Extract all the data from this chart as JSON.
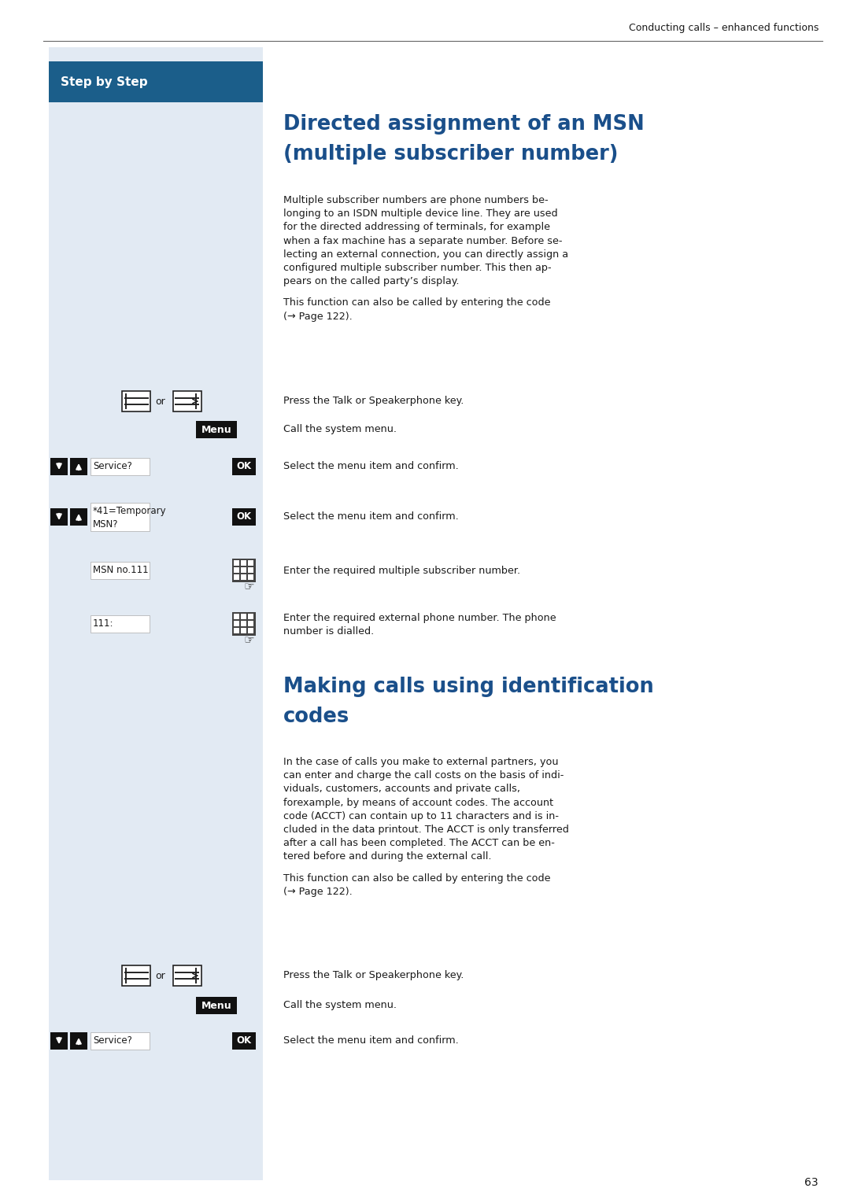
{
  "header_text": "Conducting calls – enhanced functions",
  "page_number": "63",
  "step_by_step_label": "Step by Step",
  "step_by_step_bg": "#1b5e8a",
  "left_panel_bg": "#e2eaf3",
  "title1_line1": "Directed assignment of an MSN",
  "title1_line2": "(multiple subscriber number)",
  "title_color": "#1a4f8a",
  "body1_lines": [
    "Multiple subscriber numbers are phone numbers be-",
    "longing to an ISDN multiple device line. They are used",
    "for the directed addressing of terminals, for example",
    "when a fax machine has a separate number. Before se-",
    "lecting an external connection, you can directly assign a",
    "configured multiple subscriber number. This then ap-",
    "pears on the called party’s display."
  ],
  "note1_lines": [
    "This function can also be called by entering the code",
    "(→ Page 122)."
  ],
  "title2_line1": "Making calls using identification",
  "title2_line2": "codes",
  "body2_lines": [
    "In the case of calls you make to external partners, you",
    "can enter and charge the call costs on the basis of indi-",
    "viduals, customers, accounts and private calls,",
    "forexample, by means of account codes. The account",
    "code (ACCT) can contain up to 11 characters and is in-",
    "cluded in the data printout. The ACCT is only transferred",
    "after a call has been completed. The ACCT can be en-",
    "tered before and during the external call."
  ],
  "note2_lines": [
    "This function can also be called by entering the code",
    "(→ Page 122)."
  ]
}
